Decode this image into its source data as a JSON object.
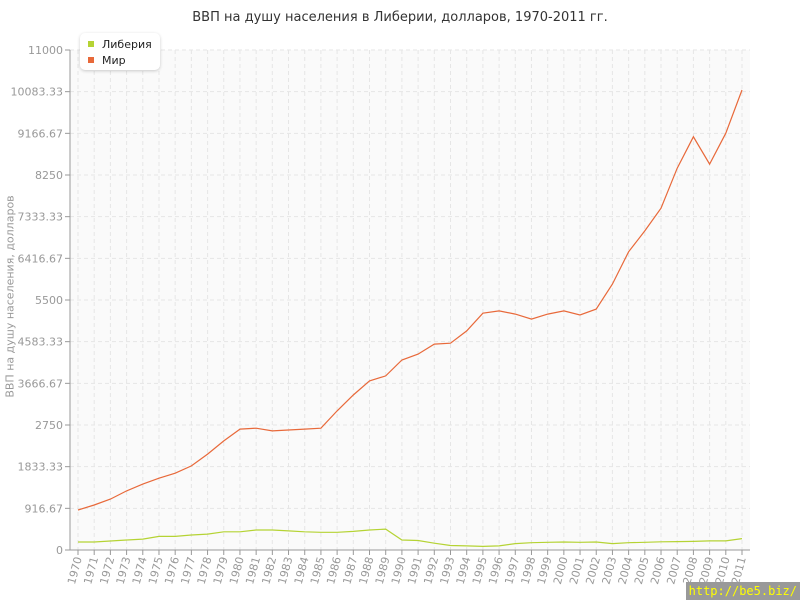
{
  "chart_data": {
    "type": "line",
    "title": "ВВП на душу населения в Либерии, долларов, 1970-2011 гг.",
    "ylabel": "ВВП на душу населения, долларов",
    "xlabel": "",
    "ylim": [
      0,
      11000
    ],
    "yticks": [
      "0",
      "916.67",
      "1833.33",
      "2750",
      "3666.67",
      "4583.33",
      "5500",
      "6416.67",
      "7333.33",
      "8250",
      "9166.67",
      "10083.33",
      "11000"
    ],
    "grid": true,
    "legend_position": "top-left",
    "x": [
      1970,
      1971,
      1972,
      1973,
      1974,
      1975,
      1976,
      1977,
      1978,
      1979,
      1980,
      1981,
      1982,
      1983,
      1984,
      1985,
      1986,
      1987,
      1988,
      1989,
      1990,
      1991,
      1992,
      1993,
      1994,
      1995,
      1996,
      1997,
      1998,
      1999,
      2000,
      2001,
      2002,
      2003,
      2004,
      2005,
      2006,
      2007,
      2008,
      2009,
      2010,
      2011
    ],
    "series": [
      {
        "name": "Либерия",
        "color": "#b5d334",
        "values": [
          176,
          176,
          198,
          220,
          240,
          300,
          300,
          330,
          350,
          400,
          400,
          440,
          440,
          420,
          400,
          390,
          390,
          410,
          440,
          460,
          220,
          210,
          150,
          100,
          90,
          80,
          90,
          140,
          160,
          170,
          175,
          170,
          175,
          140,
          160,
          170,
          180,
          185,
          190,
          200,
          200,
          250
        ]
      },
      {
        "name": "Мир",
        "color": "#e8693a",
        "values": [
          880,
          990,
          1120,
          1300,
          1450,
          1580,
          1690,
          1850,
          2110,
          2400,
          2660,
          2680,
          2620,
          2640,
          2660,
          2680,
          3060,
          3410,
          3720,
          3830,
          4180,
          4310,
          4530,
          4550,
          4820,
          5210,
          5260,
          5190,
          5080,
          5190,
          5260,
          5170,
          5300,
          5850,
          6560,
          7020,
          7520,
          8400,
          9090,
          8490,
          9170,
          10120
        ]
      }
    ]
  },
  "watermark": "http://be5.biz/"
}
